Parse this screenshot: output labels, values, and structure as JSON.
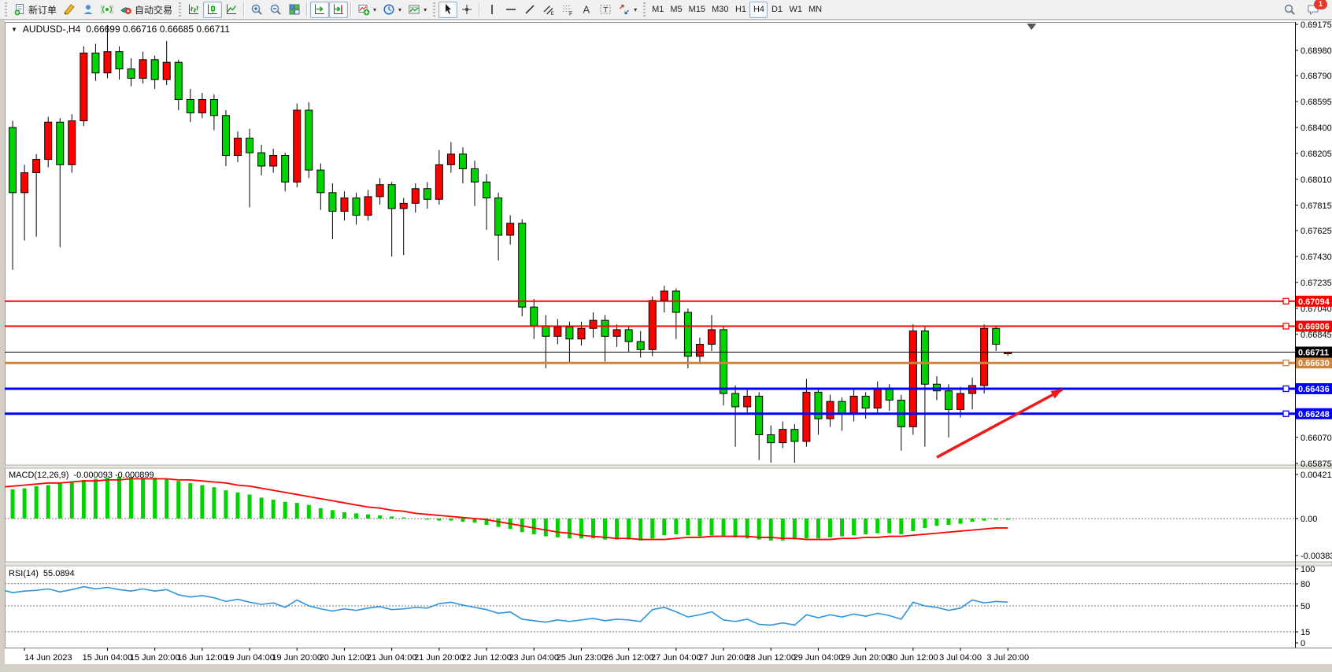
{
  "toolbar": {
    "groups": [
      {
        "name": "standard",
        "items": [
          {
            "name": "new-order-button",
            "icon": "new-order-icon",
            "label": "新订单"
          },
          {
            "name": "metaeditor-button",
            "icon": "metaeditor-icon"
          },
          {
            "name": "community-button",
            "icon": "community-icon"
          },
          {
            "name": "signals-button",
            "icon": "signals-icon"
          },
          {
            "name": "autotrading-button",
            "icon": "autotrading-icon",
            "label": "自动交易"
          }
        ]
      },
      {
        "name": "charts",
        "items": [
          {
            "name": "bar-chart-button",
            "icon": "bar-chart-icon"
          },
          {
            "name": "candlestick-button",
            "icon": "candlestick-icon",
            "pressed": true
          },
          {
            "name": "line-chart-button",
            "icon": "line-chart-icon"
          },
          {
            "sep": true
          },
          {
            "name": "zoom-in-button",
            "icon": "zoom-in-icon"
          },
          {
            "name": "zoom-out-button",
            "icon": "zoom-out-icon"
          },
          {
            "name": "tile-windows-button",
            "icon": "tile-windows-icon"
          },
          {
            "sep": true
          },
          {
            "name": "auto-scroll-button",
            "icon": "auto-scroll-icon",
            "pressed": true
          },
          {
            "name": "chart-shift-button",
            "icon": "chart-shift-icon",
            "pressed": true
          },
          {
            "sep": true
          },
          {
            "name": "indicators-button",
            "icon": "indicators-icon",
            "caret": true
          },
          {
            "name": "periods-button",
            "icon": "periods-icon",
            "caret": true
          },
          {
            "name": "templates-button",
            "icon": "templates-icon",
            "caret": true
          }
        ]
      },
      {
        "name": "line-studies",
        "items": [
          {
            "name": "cursor-button",
            "icon": "cursor-icon",
            "pressed": true
          },
          {
            "name": "crosshair-button",
            "icon": "crosshair-icon"
          },
          {
            "sep": true
          },
          {
            "name": "vertical-line-button",
            "icon": "vertical-line-icon"
          },
          {
            "name": "horizontal-line-button",
            "icon": "horizontal-line-icon"
          },
          {
            "name": "trendline-button",
            "icon": "trendline-icon"
          },
          {
            "name": "equidistant-channel-button",
            "icon": "channel-icon"
          },
          {
            "name": "fibonacci-button",
            "icon": "fibonacci-icon"
          },
          {
            "name": "text-button",
            "icon": "text-icon"
          },
          {
            "name": "text-label-button",
            "icon": "text-label-icon"
          },
          {
            "name": "arrows-button",
            "icon": "shapes-icon",
            "caret": true
          }
        ]
      },
      {
        "name": "timeframes",
        "items": [
          {
            "name": "tf-m1-button",
            "label": "M1",
            "tf": true
          },
          {
            "name": "tf-m5-button",
            "label": "M5",
            "tf": true
          },
          {
            "name": "tf-m15-button",
            "label": "M15",
            "tf": true
          },
          {
            "name": "tf-m30-button",
            "label": "M30",
            "tf": true
          },
          {
            "name": "tf-h1-button",
            "label": "H1",
            "tf": true
          },
          {
            "name": "tf-h4-button",
            "label": "H4",
            "tf": true,
            "pressed": true
          },
          {
            "name": "tf-d1-button",
            "label": "D1",
            "tf": true
          },
          {
            "name": "tf-w1-button",
            "label": "W1",
            "tf": true
          },
          {
            "name": "tf-mn-button",
            "label": "MN",
            "tf": true
          }
        ]
      }
    ],
    "notification_count": "1"
  },
  "chart": {
    "symbol_period": "AUDUSD-,H4",
    "ohlc_text": "0.66699 0.66716 0.66685 0.66711"
  },
  "chart_data": {
    "type": "candlestick",
    "symbol": "AUDUSD",
    "timeframe": "H4",
    "current": {
      "open": 0.66699,
      "high": 0.66716,
      "low": 0.66685,
      "close": 0.66711
    },
    "up_color": "#ff0000",
    "down_color": "#00d300",
    "wick_color": "#000000",
    "y_axis_ticks": [
      "0.69175",
      "0.68980",
      "0.68790",
      "0.68595",
      "0.68400",
      "0.68205",
      "0.68010",
      "0.67815",
      "0.67625",
      "0.67430",
      "0.67235",
      "0.67040",
      "0.66845",
      "0.66650",
      "0.66455",
      "0.66260",
      "0.66070",
      "0.65875"
    ],
    "x_axis_labels": [
      "14 Jun 2023",
      "15 Jun 04:00",
      "15 Jun 20:00",
      "16 Jun 12:00",
      "19 Jun 04:00",
      "19 Jun 20:00",
      "20 Jun 12:00",
      "21 Jun 04:00",
      "21 Jun 20:00",
      "22 Jun 12:00",
      "23 Jun 04:00",
      "25 Jun 23:00",
      "26 Jun 12:00",
      "27 Jun 04:00",
      "27 Jun 20:00",
      "28 Jun 12:00",
      "29 Jun 04:00",
      "29 Jun 20:00",
      "30 Jun 12:00",
      "3 Jul 04:00",
      "3 Jul 20:00"
    ],
    "x_label_bars": [
      2,
      9,
      13,
      17,
      21,
      25,
      29,
      33,
      37,
      41,
      45,
      49,
      53,
      57,
      61,
      65,
      69,
      73,
      77,
      81,
      85
    ],
    "horizontal_lines": [
      {
        "price": 0.67094,
        "label": "0.67094",
        "color": "#ff0000",
        "width": 2
      },
      {
        "price": 0.66906,
        "label": "0.66906",
        "color": "#ff0000",
        "width": 2
      },
      {
        "price": 0.6663,
        "label": "0.66630",
        "color": "#cd8540",
        "width": 3
      },
      {
        "price": 0.66436,
        "label": "0.66436",
        "color": "#0000ff",
        "width": 3
      },
      {
        "price": 0.66248,
        "label": "0.66248",
        "color": "#0000ff",
        "width": 3
      }
    ],
    "bid_line": {
      "price": 0.66711,
      "label": "0.66711",
      "color": "#000000"
    },
    "candles": [
      [
        0.6798,
        0.6848,
        0.679,
        0.684
      ],
      [
        0.684,
        0.6845,
        0.6733,
        0.6791
      ],
      [
        0.6791,
        0.6812,
        0.6755,
        0.6806
      ],
      [
        0.6806,
        0.682,
        0.6758,
        0.6816
      ],
      [
        0.6816,
        0.6848,
        0.681,
        0.6844
      ],
      [
        0.6844,
        0.6847,
        0.675,
        0.6812
      ],
      [
        0.6812,
        0.685,
        0.6806,
        0.6845
      ],
      [
        0.6845,
        0.6901,
        0.6841,
        0.6896
      ],
      [
        0.6896,
        0.6903,
        0.6875,
        0.6881
      ],
      [
        0.6881,
        0.6917,
        0.6877,
        0.6897
      ],
      [
        0.6897,
        0.6901,
        0.6876,
        0.6884
      ],
      [
        0.6884,
        0.6892,
        0.6871,
        0.6877
      ],
      [
        0.6877,
        0.6897,
        0.6873,
        0.6891
      ],
      [
        0.6891,
        0.6894,
        0.6869,
        0.6876
      ],
      [
        0.6876,
        0.6905,
        0.6872,
        0.6889
      ],
      [
        0.6889,
        0.6891,
        0.6853,
        0.6861
      ],
      [
        0.6861,
        0.6869,
        0.6844,
        0.6851
      ],
      [
        0.6851,
        0.6866,
        0.6847,
        0.6861
      ],
      [
        0.6861,
        0.6865,
        0.6838,
        0.6849
      ],
      [
        0.6849,
        0.6853,
        0.6811,
        0.6819
      ],
      [
        0.6819,
        0.6837,
        0.6814,
        0.6832
      ],
      [
        0.6832,
        0.6839,
        0.678,
        0.6821
      ],
      [
        0.6821,
        0.6827,
        0.6804,
        0.6811
      ],
      [
        0.6811,
        0.6824,
        0.6806,
        0.6819
      ],
      [
        0.6819,
        0.6821,
        0.6792,
        0.6799
      ],
      [
        0.6799,
        0.6858,
        0.6795,
        0.6853
      ],
      [
        0.6853,
        0.6859,
        0.6802,
        0.6808
      ],
      [
        0.6808,
        0.6813,
        0.6778,
        0.6791
      ],
      [
        0.6791,
        0.6798,
        0.6756,
        0.6777
      ],
      [
        0.6777,
        0.6792,
        0.677,
        0.6787
      ],
      [
        0.6787,
        0.6791,
        0.6767,
        0.6774
      ],
      [
        0.6774,
        0.6793,
        0.677,
        0.6788
      ],
      [
        0.6788,
        0.6802,
        0.6782,
        0.6797
      ],
      [
        0.6797,
        0.6799,
        0.6743,
        0.6779
      ],
      [
        0.6779,
        0.6787,
        0.6744,
        0.6783
      ],
      [
        0.6783,
        0.6798,
        0.6776,
        0.6794
      ],
      [
        0.6794,
        0.6799,
        0.6779,
        0.6786
      ],
      [
        0.6786,
        0.6823,
        0.6782,
        0.6812
      ],
      [
        0.6812,
        0.6829,
        0.6806,
        0.682
      ],
      [
        0.682,
        0.6825,
        0.6798,
        0.6809
      ],
      [
        0.6809,
        0.6815,
        0.6781,
        0.6799
      ],
      [
        0.6799,
        0.6805,
        0.6763,
        0.6787
      ],
      [
        0.6787,
        0.6791,
        0.674,
        0.6759
      ],
      [
        0.6759,
        0.6774,
        0.6752,
        0.6768
      ],
      [
        0.6768,
        0.6771,
        0.6698,
        0.6705
      ],
      [
        0.6705,
        0.6711,
        0.6681,
        0.6691
      ],
      [
        0.6691,
        0.6699,
        0.6659,
        0.6683
      ],
      [
        0.6683,
        0.6696,
        0.6677,
        0.669
      ],
      [
        0.669,
        0.6694,
        0.6663,
        0.6681
      ],
      [
        0.6681,
        0.6694,
        0.6676,
        0.6689
      ],
      [
        0.6689,
        0.6701,
        0.6682,
        0.6695
      ],
      [
        0.6695,
        0.6699,
        0.6664,
        0.6683
      ],
      [
        0.6683,
        0.6692,
        0.6675,
        0.6688
      ],
      [
        0.6688,
        0.6691,
        0.6671,
        0.6679
      ],
      [
        0.6679,
        0.6687,
        0.6667,
        0.6673
      ],
      [
        0.6673,
        0.6713,
        0.6668,
        0.671
      ],
      [
        0.671,
        0.6721,
        0.6701,
        0.6717
      ],
      [
        0.6717,
        0.6719,
        0.6681,
        0.6701
      ],
      [
        0.6701,
        0.6704,
        0.6659,
        0.6668
      ],
      [
        0.6668,
        0.6682,
        0.6662,
        0.6677
      ],
      [
        0.6677,
        0.6699,
        0.6672,
        0.6688
      ],
      [
        0.6688,
        0.6691,
        0.6631,
        0.664
      ],
      [
        0.664,
        0.6646,
        0.66,
        0.663
      ],
      [
        0.663,
        0.6643,
        0.6624,
        0.6638
      ],
      [
        0.6638,
        0.6641,
        0.659,
        0.6609
      ],
      [
        0.6609,
        0.6616,
        0.6588,
        0.6603
      ],
      [
        0.6603,
        0.6619,
        0.6599,
        0.6613
      ],
      [
        0.6613,
        0.6617,
        0.6588,
        0.6604
      ],
      [
        0.6604,
        0.6651,
        0.66,
        0.6641
      ],
      [
        0.6641,
        0.6644,
        0.6609,
        0.6621
      ],
      [
        0.6621,
        0.6639,
        0.6615,
        0.6634
      ],
      [
        0.6634,
        0.6637,
        0.6612,
        0.6625
      ],
      [
        0.6625,
        0.6643,
        0.6619,
        0.6638
      ],
      [
        0.6638,
        0.6641,
        0.6621,
        0.6629
      ],
      [
        0.6629,
        0.6649,
        0.6625,
        0.6644
      ],
      [
        0.6644,
        0.6647,
        0.6627,
        0.6635
      ],
      [
        0.6635,
        0.6639,
        0.6597,
        0.6615
      ],
      [
        0.6615,
        0.6692,
        0.6609,
        0.6687
      ],
      [
        0.6687,
        0.669,
        0.66,
        0.6647
      ],
      [
        0.6647,
        0.6653,
        0.6635,
        0.6642
      ],
      [
        0.6642,
        0.6647,
        0.6607,
        0.6628
      ],
      [
        0.6628,
        0.6645,
        0.6622,
        0.664
      ],
      [
        0.664,
        0.6652,
        0.6628,
        0.6646
      ],
      [
        0.6646,
        0.6692,
        0.664,
        0.6689
      ],
      [
        0.6689,
        0.6691,
        0.6672,
        0.6677
      ],
      [
        0.66699,
        0.66716,
        0.66685,
        0.66711
      ]
    ],
    "macd": {
      "label": "MACD(12,26,9)",
      "values_label": "-0.000093 -0.000899",
      "axis": [
        "0.004215",
        "0.00",
        "-0.003835"
      ],
      "histogram_color": "#00d300",
      "signal_color": "#ff0000",
      "histogram": [
        0.0026,
        0.0028,
        0.0029,
        0.0031,
        0.0032,
        0.0034,
        0.0035,
        0.0037,
        0.0038,
        0.0039,
        0.004,
        0.004,
        0.0039,
        0.0039,
        0.0038,
        0.0036,
        0.0034,
        0.0032,
        0.003,
        0.0027,
        0.0025,
        0.0023,
        0.002,
        0.0018,
        0.0016,
        0.0015,
        0.0013,
        0.001,
        0.0008,
        0.0006,
        0.0005,
        0.0004,
        0.0003,
        0.0002,
        0.0001,
        0.0,
        -0.0001,
        -0.0002,
        -0.0002,
        -0.0003,
        -0.0004,
        -0.0006,
        -0.0008,
        -0.001,
        -0.0013,
        -0.0015,
        -0.0017,
        -0.0018,
        -0.0019,
        -0.0019,
        -0.0019,
        -0.002,
        -0.002,
        -0.002,
        -0.0021,
        -0.0019,
        -0.0016,
        -0.0015,
        -0.0016,
        -0.0017,
        -0.0016,
        -0.0017,
        -0.0018,
        -0.0019,
        -0.002,
        -0.0021,
        -0.0021,
        -0.002,
        -0.0019,
        -0.0019,
        -0.0018,
        -0.0017,
        -0.0016,
        -0.0015,
        -0.0014,
        -0.0014,
        -0.0015,
        -0.0012,
        -0.0009,
        -0.0007,
        -0.0006,
        -0.0005,
        -0.0003,
        -0.0002,
        -0.0001,
        -0.0001
      ],
      "signal": [
        0.003,
        0.0031,
        0.0032,
        0.0033,
        0.0034,
        0.0034,
        0.0035,
        0.0036,
        0.0036,
        0.0037,
        0.0037,
        0.0038,
        0.0038,
        0.0038,
        0.0038,
        0.0037,
        0.0037,
        0.0036,
        0.0035,
        0.0034,
        0.0032,
        0.0031,
        0.0029,
        0.0027,
        0.0025,
        0.0023,
        0.0021,
        0.0019,
        0.0017,
        0.0015,
        0.0013,
        0.0011,
        0.001,
        0.0008,
        0.0007,
        0.0005,
        0.0004,
        0.0003,
        0.0002,
        0.0001,
        0.0,
        -0.0001,
        -0.0003,
        -0.0005,
        -0.0007,
        -0.0009,
        -0.0011,
        -0.0013,
        -0.0014,
        -0.0016,
        -0.0017,
        -0.0018,
        -0.0019,
        -0.0019,
        -0.002,
        -0.002,
        -0.002,
        -0.0019,
        -0.0018,
        -0.0018,
        -0.0017,
        -0.0017,
        -0.0017,
        -0.0017,
        -0.0018,
        -0.0018,
        -0.0019,
        -0.0019,
        -0.002,
        -0.002,
        -0.002,
        -0.0019,
        -0.0019,
        -0.0018,
        -0.0018,
        -0.0017,
        -0.0017,
        -0.0016,
        -0.0015,
        -0.0014,
        -0.0013,
        -0.0012,
        -0.0011,
        -0.001,
        -0.0009,
        -0.0009
      ]
    },
    "rsi": {
      "label": "RSI(14)",
      "value_label": "55.0894",
      "axis": [
        "100",
        "80",
        "50",
        "15",
        "0"
      ],
      "levels": [
        80,
        50,
        15
      ],
      "color": "#2d95dd",
      "values": [
        72,
        68,
        70,
        71,
        73,
        69,
        72,
        76,
        73,
        75,
        72,
        70,
        73,
        70,
        72,
        65,
        62,
        64,
        61,
        56,
        59,
        55,
        52,
        54,
        48,
        58,
        50,
        46,
        43,
        46,
        44,
        47,
        49,
        45,
        46,
        48,
        47,
        53,
        55,
        51,
        48,
        45,
        40,
        42,
        32,
        30,
        28,
        31,
        29,
        31,
        33,
        30,
        32,
        31,
        29,
        45,
        48,
        42,
        35,
        38,
        42,
        31,
        29,
        32,
        25,
        24,
        27,
        24,
        38,
        34,
        38,
        35,
        39,
        36,
        40,
        37,
        32,
        55,
        50,
        48,
        44,
        47,
        58,
        54,
        56,
        55.1
      ]
    },
    "arrow_annotation": {
      "color": "#f01818",
      "from": {
        "bar": 79,
        "price": 0.6592
      },
      "to": {
        "bar": 89.6,
        "price": 0.6643
      }
    },
    "shift_marker_bar": 87
  }
}
